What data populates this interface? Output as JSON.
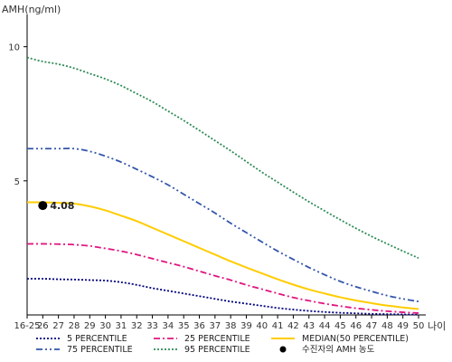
{
  "chart_data": {
    "type": "line",
    "ylabel": "AMH(ng/ml)",
    "xlabel": "나이",
    "ylim": [
      0,
      11
    ],
    "yticks": [
      5,
      10
    ],
    "categories": [
      "16-25",
      "26",
      "27",
      "28",
      "29",
      "30",
      "31",
      "32",
      "33",
      "34",
      "35",
      "36",
      "37",
      "38",
      "39",
      "40",
      "41",
      "42",
      "43",
      "44",
      "45",
      "46",
      "47",
      "48",
      "49",
      "50"
    ],
    "series": [
      {
        "name": "5 PERCENTILE",
        "color": "#000080",
        "style": "dotted",
        "values": [
          1.35,
          1.35,
          1.33,
          1.32,
          1.3,
          1.28,
          1.22,
          1.12,
          1.0,
          0.9,
          0.8,
          0.7,
          0.6,
          0.5,
          0.42,
          0.34,
          0.26,
          0.2,
          0.15,
          0.11,
          0.08,
          0.06,
          0.04,
          0.03,
          0.02,
          0.01
        ]
      },
      {
        "name": "25 PERCENTILE",
        "color": "#e0157f",
        "style": "dashdot",
        "values": [
          2.65,
          2.65,
          2.64,
          2.62,
          2.57,
          2.48,
          2.38,
          2.25,
          2.1,
          1.95,
          1.8,
          1.63,
          1.46,
          1.3,
          1.12,
          0.96,
          0.8,
          0.65,
          0.53,
          0.42,
          0.33,
          0.25,
          0.19,
          0.14,
          0.1,
          0.07
        ]
      },
      {
        "name": "MEDIAN(50 PERCENTILE)",
        "color": "#ffcc00",
        "style": "solid",
        "values": [
          4.2,
          4.2,
          4.18,
          4.15,
          4.05,
          3.9,
          3.7,
          3.5,
          3.25,
          3.0,
          2.75,
          2.5,
          2.25,
          2.0,
          1.77,
          1.55,
          1.33,
          1.13,
          0.95,
          0.8,
          0.66,
          0.54,
          0.44,
          0.35,
          0.28,
          0.22
        ]
      },
      {
        "name": "75 PERCENTILE",
        "color": "#3355aa",
        "style": "dashdotdot",
        "values": [
          6.2,
          6.2,
          6.2,
          6.2,
          6.1,
          5.92,
          5.7,
          5.43,
          5.15,
          4.85,
          4.5,
          4.15,
          3.8,
          3.42,
          3.07,
          2.72,
          2.38,
          2.07,
          1.77,
          1.5,
          1.25,
          1.05,
          0.88,
          0.72,
          0.6,
          0.5
        ]
      },
      {
        "name": "95 PERCENTILE",
        "color": "#2e8b57",
        "style": "dotted",
        "values": [
          9.6,
          9.45,
          9.35,
          9.2,
          9.0,
          8.8,
          8.55,
          8.25,
          7.95,
          7.6,
          7.25,
          6.88,
          6.5,
          6.12,
          5.72,
          5.32,
          4.95,
          4.58,
          4.22,
          3.88,
          3.55,
          3.23,
          2.93,
          2.65,
          2.38,
          2.12
        ]
      }
    ],
    "marker": {
      "name": "수진자의 AMH 농도",
      "x": "26",
      "value": 4.08,
      "label": "4.08",
      "color": "#000000"
    },
    "legend_position": "bottom",
    "grid": false
  }
}
